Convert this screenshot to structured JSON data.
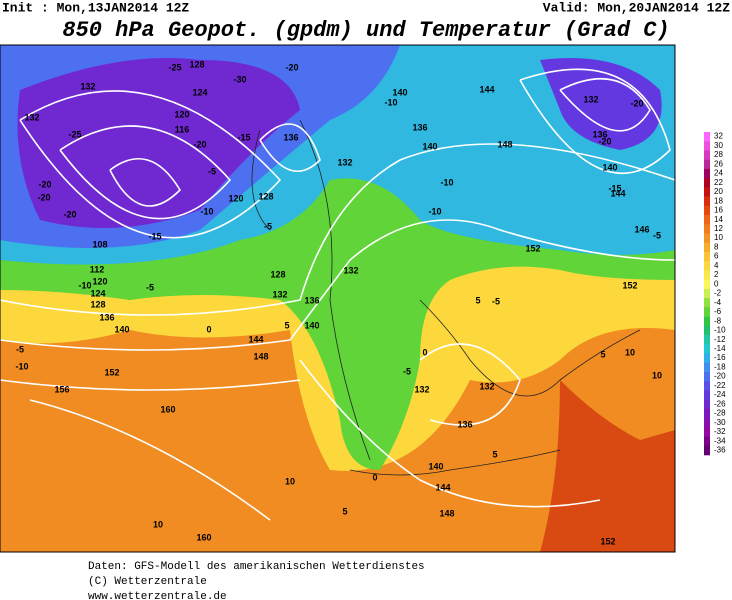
{
  "header": {
    "init": "Init : Mon,13JAN2014  12Z",
    "valid": "Valid: Mon,20JAN2014  12Z",
    "title": "850 hPa Geopot. (gpdm) und Temperatur (Grad C)"
  },
  "colorbar": {
    "labels": [
      32,
      30,
      28,
      26,
      24,
      22,
      20,
      18,
      16,
      14,
      12,
      10,
      8,
      6,
      4,
      2,
      0,
      -2,
      -4,
      -6,
      -8,
      -10,
      -12,
      -14,
      -16,
      -18,
      -20,
      -22,
      -24,
      -26,
      -28,
      -30,
      -32,
      -34,
      -36
    ],
    "colors": [
      "#ff66ff",
      "#f050e0",
      "#d838c0",
      "#b82898",
      "#a00060",
      "#b00020",
      "#c81010",
      "#dc2c0c",
      "#e84810",
      "#f06418",
      "#f07c1c",
      "#f49424",
      "#f8ac2c",
      "#fcc434",
      "#fcd83c",
      "#fce848",
      "#f8f858",
      "#c8f050",
      "#90e040",
      "#60d438",
      "#30c840",
      "#20c070",
      "#20c8a8",
      "#20c8d0",
      "#30b0e8",
      "#4090f0",
      "#4c70f0",
      "#5850e8",
      "#6438e0",
      "#7028d0",
      "#7c18c0",
      "#8810b0",
      "#9408a0",
      "#7c0088",
      "#640070"
    ]
  },
  "map_labels": [
    "132",
    "-25",
    "132",
    "-25",
    "128",
    "-30",
    "-20",
    "124",
    "120",
    "116",
    "-15",
    "-20",
    "-5",
    "-10",
    "-15",
    "-20",
    "-20",
    "-20",
    "108",
    "112",
    "120",
    "124",
    "128",
    "136",
    "140",
    "-10",
    "-5",
    "136",
    "-5",
    "120",
    "128",
    "132",
    "-10",
    "140",
    "144",
    "136",
    "140",
    "148",
    "-10",
    "-10",
    "132",
    "128",
    "132",
    "136",
    "140",
    "0",
    "5",
    "144",
    "148",
    "152",
    "156",
    "160",
    "-10",
    "-5",
    "10",
    "10",
    "160",
    "5",
    "0",
    "140",
    "144",
    "148",
    "132",
    "132",
    "136",
    "5",
    "-5",
    "0",
    "-5",
    "5",
    "152",
    "152",
    "-5",
    "146",
    "132",
    "-20",
    "136",
    "-20",
    "140",
    "-15",
    "144",
    "10",
    "5",
    "10",
    "152"
  ],
  "footer": {
    "line1": "Daten: GFS-Modell des amerikanischen Wetterdienstes",
    "line2": "(C) Wetterzentrale",
    "line3": "www.wetterzentrale.de"
  }
}
